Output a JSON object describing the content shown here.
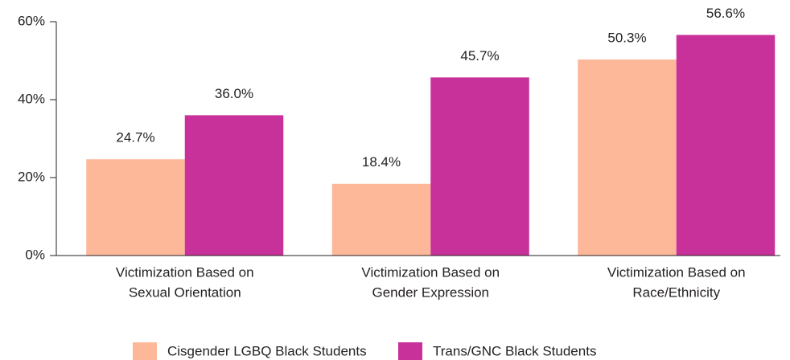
{
  "chart_data": {
    "type": "bar",
    "categories": [
      [
        "Victimization Based on",
        "Sexual Orientation"
      ],
      [
        "Victimization Based on",
        "Gender Expression"
      ],
      [
        "Victimization Based on",
        "Race/Ethnicity"
      ]
    ],
    "series": [
      {
        "name": "Cisgender LGBQ Black Students",
        "color": "#fdb899",
        "values": [
          24.7,
          18.4,
          50.3
        ],
        "value_labels": [
          "24.7%",
          "18.4%",
          "50.3%"
        ]
      },
      {
        "name": "Trans/GNC Black Students",
        "color": "#c8309a",
        "values": [
          36.0,
          45.7,
          56.6
        ],
        "value_labels": [
          "36.0%",
          "45.7%",
          "56.6%"
        ]
      }
    ],
    "ylim": [
      0,
      60
    ],
    "yticks": [
      {
        "value": 0,
        "label": "0%"
      },
      {
        "value": 20,
        "label": "20%"
      },
      {
        "value": 40,
        "label": "40%"
      },
      {
        "value": 60,
        "label": "60%"
      }
    ],
    "legend": "bottom"
  }
}
